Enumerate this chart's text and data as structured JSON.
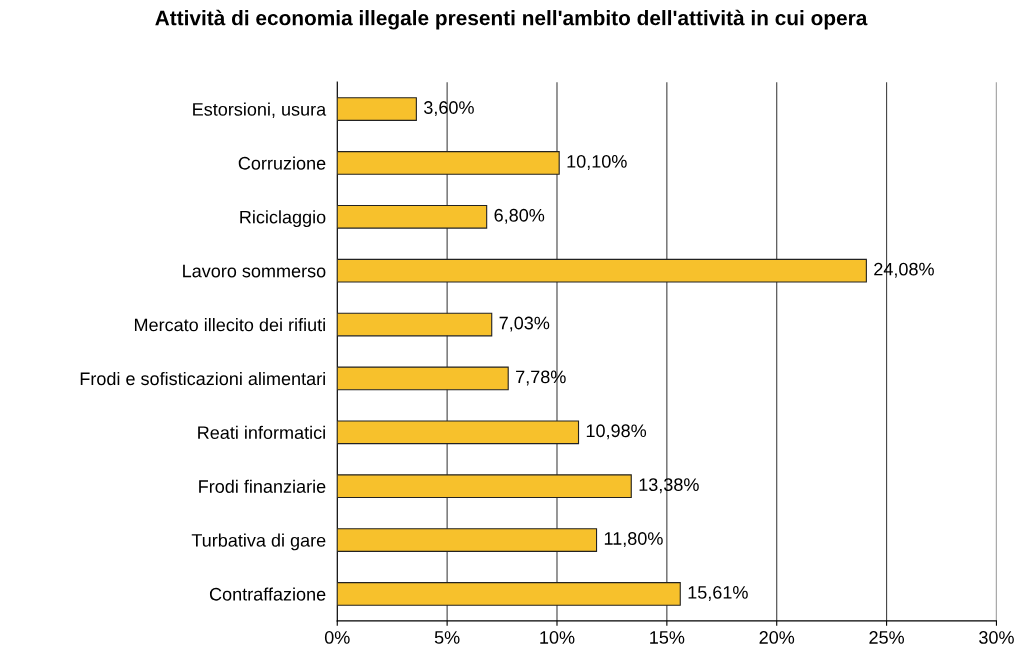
{
  "chart_data": {
    "type": "bar",
    "orientation": "horizontal",
    "title": "Attività di economia illegale presenti nell'ambito dell'attività in cui opera",
    "categories": [
      "Estorsioni, usura",
      "Corruzione",
      "Riciclaggio",
      "Lavoro sommerso",
      "Mercato illecito dei rifiuti",
      "Frodi e sofisticazioni alimentari",
      "Reati informatici",
      "Frodi finanziarie",
      "Turbativa di gare",
      "Contraffazione"
    ],
    "values": [
      3.6,
      10.1,
      6.8,
      24.08,
      7.03,
      7.78,
      10.98,
      13.38,
      11.8,
      15.61
    ],
    "value_labels": [
      "3,60%",
      "10,10%",
      "6,80%",
      "24,08%",
      "7,03%",
      "7,78%",
      "10,98%",
      "13,38%",
      "11,80%",
      "15,61%"
    ],
    "color": "#f7c12c",
    "xlim": [
      0,
      30
    ],
    "xticks": [
      {
        "value": 0,
        "label": "0%"
      },
      {
        "value": 5,
        "label": "5%"
      },
      {
        "value": 10,
        "label": "10%"
      },
      {
        "value": 15,
        "label": "15%"
      },
      {
        "value": 20,
        "label": "20%"
      },
      {
        "value": 25,
        "label": "25%"
      },
      {
        "value": 30,
        "label": "30%"
      }
    ],
    "grid": "x",
    "legend": false
  }
}
